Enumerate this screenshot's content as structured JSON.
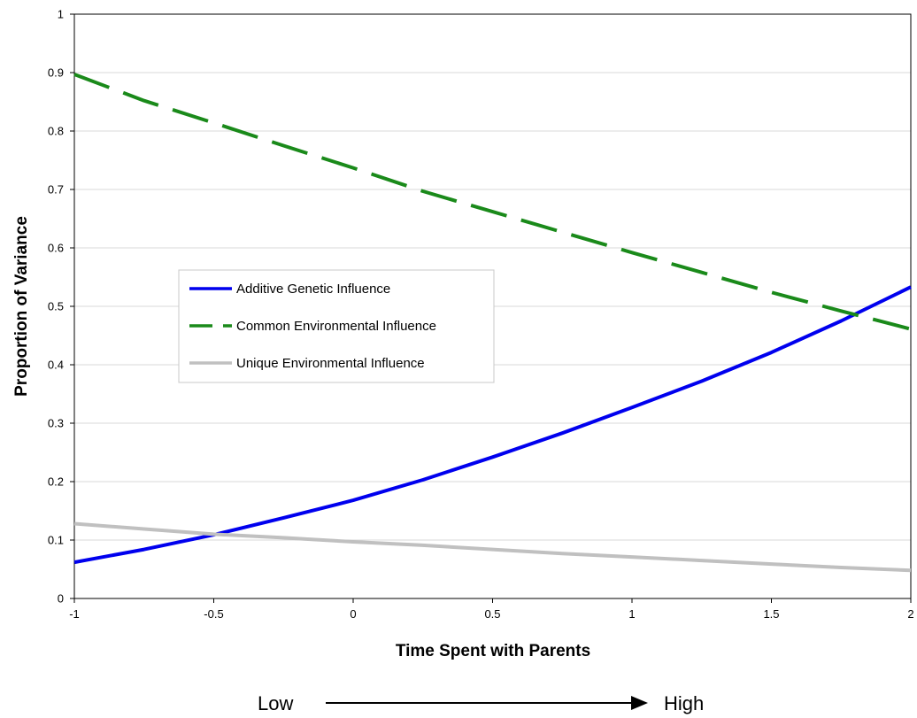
{
  "chart_data": {
    "type": "line",
    "title": "",
    "xlabel": "Time Spent with Parents",
    "ylabel": "Proportion of Variance",
    "xlim": [
      -1,
      2
    ],
    "ylim": [
      0,
      1
    ],
    "xticks": [
      -1,
      -0.5,
      0,
      0.5,
      1,
      1.5,
      2
    ],
    "xtick_labels": [
      "-1",
      "-0.5",
      "0",
      "0.5",
      "1",
      "1.5",
      "2"
    ],
    "yticks": [
      0,
      0.1,
      0.2,
      0.3,
      0.4,
      0.5,
      0.6,
      0.7,
      0.8,
      0.9,
      1
    ],
    "ytick_labels": [
      "0",
      "0.1",
      "0.2",
      "0.3",
      "0.4",
      "0.5",
      "0.6",
      "0.7",
      "0.8",
      "0.9",
      "1"
    ],
    "grid": "horizontal",
    "legend_position": "center-left",
    "x": [
      -1,
      -0.75,
      -0.5,
      -0.25,
      0,
      0.25,
      0.5,
      0.75,
      1,
      1.25,
      1.5,
      1.75,
      2
    ],
    "series": [
      {
        "name": "Additive Genetic Influence",
        "color": "#0000ee",
        "style": "solid",
        "values": [
          0.062,
          0.084,
          0.109,
          0.138,
          0.168,
          0.203,
          0.242,
          0.283,
          0.327,
          0.372,
          0.421,
          0.475,
          0.533
        ]
      },
      {
        "name": "Common Environmental Influence",
        "color": "#1a8a1a",
        "style": "dashed",
        "values": [
          0.897,
          0.852,
          0.814,
          0.775,
          0.737,
          0.697,
          0.662,
          0.627,
          0.592,
          0.558,
          0.524,
          0.492,
          0.461
        ]
      },
      {
        "name": "Unique Environmental Influence",
        "color": "#c0c0c0",
        "style": "solid",
        "values": [
          0.128,
          0.119,
          0.11,
          0.104,
          0.097,
          0.091,
          0.084,
          0.077,
          0.071,
          0.065,
          0.059,
          0.053,
          0.048
        ]
      }
    ]
  },
  "annotation": {
    "low_label": "Low",
    "high_label": "High"
  }
}
